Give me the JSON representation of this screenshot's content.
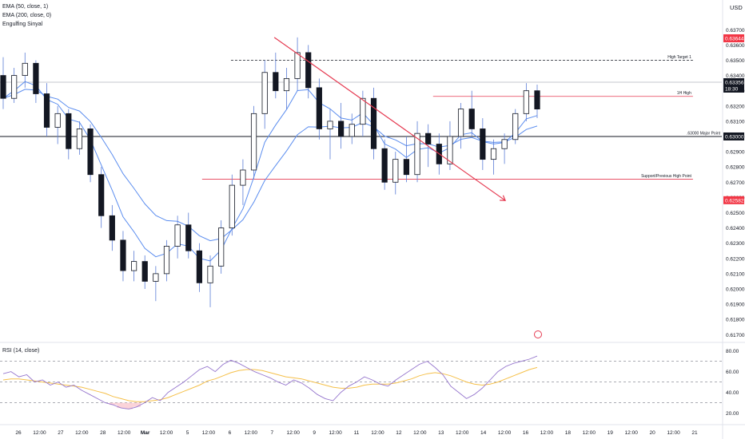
{
  "legend": {
    "ema50": "EMA (50, close, 1)",
    "ema200": "EMA (200, close, 0)",
    "engulfing": "Engulfing Sinyal",
    "rsi": "RSI (14, close)"
  },
  "currency": "USD",
  "colors": {
    "up": "#131722",
    "down": "#131722",
    "wick": "#5b7dd6",
    "ema": "#5b8def",
    "trend": "#e53950",
    "rsi_line": "#9575cd",
    "rsi_ma": "#f5c04a",
    "badge_red": "#f23645",
    "badge_dark": "#131722"
  },
  "chart_data": {
    "type": "candlestick",
    "price_axis": {
      "range": [
        0.6167,
        0.6378
      ],
      "ticks": [
        "0.63700",
        "0.63600",
        "0.63500",
        "0.63400",
        "0.63300",
        "0.63200",
        "0.63100",
        "0.63000",
        "0.62900",
        "0.62800",
        "0.62700",
        "0.62600",
        "0.62500",
        "0.62400",
        "0.62300",
        "0.62200",
        "0.62100",
        "0.62000",
        "0.61900",
        "0.61800",
        "0.61700"
      ]
    },
    "rsi_axis": {
      "range": [
        12,
        82
      ],
      "ticks": [
        "80.00",
        "60.00",
        "40.00",
        "20.00"
      ],
      "bands": [
        70,
        50,
        30
      ]
    },
    "time_axis": {
      "labels": [
        "26",
        "12:00",
        "27",
        "12:00",
        "28",
        "12:00",
        "Mar",
        "12:00",
        "5",
        "12:00",
        "6",
        "12:00",
        "7",
        "12:00",
        "9",
        "12:00",
        "11",
        "12:00",
        "12",
        "12:00",
        "13",
        "12:00",
        "14",
        "12:00",
        "16",
        "12:00",
        "18",
        "12:00",
        "19",
        "12:00",
        "20",
        "12:00",
        "21"
      ],
      "bold": [
        "Mar"
      ]
    },
    "levels": [
      {
        "label": "High Target 1",
        "price": 0.635,
        "style": "dashed",
        "x_from": 0.32,
        "x_to": 0.96
      },
      {
        "label": "1H High",
        "price": 0.63263,
        "style": "solid-red",
        "x_from": 0.6,
        "x_to": 0.96
      },
      {
        "label": ".63000 Major Point",
        "price": 0.63,
        "style": "solid-black",
        "x_from": 0.0,
        "x_to": 1.0
      },
      {
        "label": "Support/Previous High Point",
        "price": 0.6272,
        "style": "solid-red",
        "x_from": 0.28,
        "x_to": 0.96
      },
      {
        "label": "",
        "price": 0.63356,
        "style": "thin-grey",
        "x_from": 0.0,
        "x_to": 1.0
      }
    ],
    "trendline": {
      "from": {
        "x": 0.38,
        "price": 0.6365
      },
      "to": {
        "x": 0.7,
        "price": 0.6258
      }
    },
    "price_badges": [
      {
        "text": "0.63644",
        "price": 0.63644,
        "color": "badge_red"
      },
      {
        "text": "0.63356",
        "price": 0.63356,
        "color": "badge_dark",
        "sub": "18:30"
      },
      {
        "text": "0.63000",
        "price": 0.63,
        "color": "badge_dark"
      },
      {
        "text": "0.62582",
        "price": 0.62582,
        "color": "badge_red"
      }
    ],
    "candles": [
      [
        0.634,
        0.6352,
        0.6318,
        0.6325
      ],
      [
        0.6325,
        0.6345,
        0.6322,
        0.634
      ],
      [
        0.634,
        0.6355,
        0.6332,
        0.6348
      ],
      [
        0.6348,
        0.635,
        0.6322,
        0.6328
      ],
      [
        0.6328,
        0.6335,
        0.63,
        0.6306
      ],
      [
        0.6306,
        0.632,
        0.6295,
        0.6315
      ],
      [
        0.6315,
        0.6318,
        0.6285,
        0.6292
      ],
      [
        0.6292,
        0.631,
        0.6288,
        0.6305
      ],
      [
        0.6305,
        0.6308,
        0.627,
        0.6275
      ],
      [
        0.6275,
        0.628,
        0.624,
        0.6248
      ],
      [
        0.6248,
        0.6255,
        0.6225,
        0.6232
      ],
      [
        0.6232,
        0.6238,
        0.6205,
        0.6212
      ],
      [
        0.6212,
        0.6225,
        0.6205,
        0.6218
      ],
      [
        0.6218,
        0.6222,
        0.62,
        0.6205
      ],
      [
        0.6205,
        0.6215,
        0.6192,
        0.621
      ],
      [
        0.621,
        0.6232,
        0.6205,
        0.6228
      ],
      [
        0.6228,
        0.6248,
        0.622,
        0.6242
      ],
      [
        0.6242,
        0.625,
        0.622,
        0.6225
      ],
      [
        0.6225,
        0.623,
        0.6198,
        0.6204
      ],
      [
        0.6204,
        0.6222,
        0.6188,
        0.6215
      ],
      [
        0.6215,
        0.6245,
        0.621,
        0.624
      ],
      [
        0.624,
        0.6275,
        0.6235,
        0.6268
      ],
      [
        0.6268,
        0.6285,
        0.6255,
        0.6278
      ],
      [
        0.6278,
        0.632,
        0.6272,
        0.6315
      ],
      [
        0.6315,
        0.635,
        0.6305,
        0.6342
      ],
      [
        0.6342,
        0.6355,
        0.6325,
        0.633
      ],
      [
        0.633,
        0.6345,
        0.6318,
        0.6338
      ],
      [
        0.6338,
        0.6365,
        0.633,
        0.6355
      ],
      [
        0.6355,
        0.636,
        0.6325,
        0.6332
      ],
      [
        0.6332,
        0.6338,
        0.6298,
        0.6305
      ],
      [
        0.6305,
        0.6318,
        0.6285,
        0.631
      ],
      [
        0.631,
        0.6322,
        0.6292,
        0.63
      ],
      [
        0.63,
        0.6315,
        0.6295,
        0.6308
      ],
      [
        0.6308,
        0.633,
        0.63,
        0.6325
      ],
      [
        0.6325,
        0.6332,
        0.6285,
        0.6292
      ],
      [
        0.6292,
        0.6298,
        0.6265,
        0.627
      ],
      [
        0.627,
        0.629,
        0.6262,
        0.6285
      ],
      [
        0.6285,
        0.63,
        0.627,
        0.6275
      ],
      [
        0.6275,
        0.631,
        0.627,
        0.6302
      ],
      [
        0.6302,
        0.6308,
        0.628,
        0.6295
      ],
      [
        0.6295,
        0.6302,
        0.6275,
        0.6282
      ],
      [
        0.6282,
        0.631,
        0.6278,
        0.63
      ],
      [
        0.63,
        0.6322,
        0.6292,
        0.6318
      ],
      [
        0.6318,
        0.633,
        0.63,
        0.6305
      ],
      [
        0.6305,
        0.6312,
        0.6278,
        0.6285
      ],
      [
        0.6285,
        0.6298,
        0.6275,
        0.6292
      ],
      [
        0.6292,
        0.6302,
        0.6282,
        0.6298
      ],
      [
        0.6298,
        0.6318,
        0.6295,
        0.6315
      ],
      [
        0.6315,
        0.6335,
        0.631,
        0.633
      ],
      [
        0.633,
        0.6334,
        0.6312,
        0.6318
      ]
    ],
    "rsi": [
      [
        58,
        60,
        55,
        57,
        50,
        52,
        47,
        50,
        45,
        47,
        42,
        38,
        34,
        30,
        28,
        25,
        24,
        26,
        30,
        35,
        32,
        40,
        45,
        50,
        56,
        62,
        65,
        60,
        67,
        71,
        68,
        64,
        60,
        57,
        54,
        50,
        47,
        52,
        49,
        44,
        38,
        34,
        32,
        40,
        46,
        50,
        55,
        52,
        48,
        46,
        52,
        57,
        62,
        67,
        70,
        64,
        57,
        46,
        40,
        34,
        38,
        44,
        52,
        60,
        65,
        68,
        70,
        72,
        75
      ],
      [
        52,
        53,
        53,
        52,
        51,
        50,
        49,
        48,
        47,
        46,
        45,
        43,
        41,
        39,
        36,
        34,
        32,
        31,
        31,
        32,
        33,
        35,
        38,
        41,
        44,
        47,
        51,
        53,
        56,
        59,
        61,
        62,
        62,
        61,
        59,
        57,
        55,
        54,
        53,
        51,
        49,
        47,
        45,
        44,
        44,
        45,
        47,
        48,
        48,
        48,
        49,
        51,
        53,
        56,
        58,
        59,
        58,
        56,
        53,
        50,
        48,
        47,
        48,
        50,
        53,
        56,
        59,
        62,
        64
      ]
    ]
  }
}
